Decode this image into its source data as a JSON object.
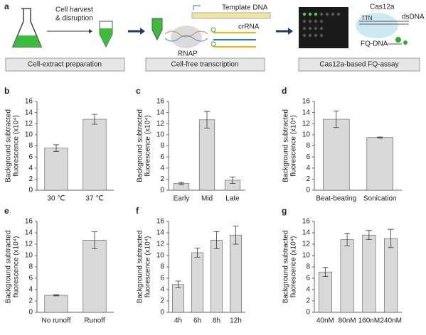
{
  "diagram": {
    "label": "a",
    "harvest": [
      "Cell harvest",
      "& disruption"
    ],
    "template": "Template DNA",
    "crrna": "crRNA",
    "rnap": "RNAP",
    "cas12a": "Cas12a",
    "dsdna": "dsDNA",
    "ttn": "TTN",
    "fqdna": "FQ-DNA",
    "steps": [
      "Cell-extract preparation",
      "Cell-free transcription",
      "Cas12a-based FQ-assay"
    ]
  },
  "chart_data": [
    {
      "type": "bar",
      "panel": "b",
      "y_label": [
        "Background subtracted",
        "fluorescence (x10⁴)"
      ],
      "categories": [
        "30 ℃",
        "37 ℃"
      ],
      "values": [
        7.6,
        12.8
      ],
      "errors": [
        0.6,
        0.9
      ],
      "color": "#d9d9d9",
      "ylim": [
        0,
        16
      ],
      "yticks": [
        0,
        2,
        4,
        6,
        8,
        10,
        12,
        14,
        16
      ]
    },
    {
      "type": "bar",
      "panel": "c",
      "y_label": [
        "Background subtracted",
        "fluorescence (x10⁴)"
      ],
      "categories": [
        "Early",
        "Mid",
        "Late"
      ],
      "values": [
        1.2,
        12.7,
        1.8
      ],
      "errors": [
        0.2,
        1.5,
        0.6
      ],
      "color": "#d9d9d9",
      "ylim": [
        0,
        16
      ],
      "yticks": [
        0,
        2,
        4,
        6,
        8,
        10,
        12,
        14,
        16
      ]
    },
    {
      "type": "bar",
      "panel": "d",
      "y_label": [
        "Background subtracted",
        "fluorescence (x10⁴)"
      ],
      "categories": [
        "Beat-beating",
        "Sonication"
      ],
      "values": [
        12.8,
        9.5
      ],
      "errors": [
        1.5,
        0.1
      ],
      "color": "#d9d9d9",
      "ylim": [
        0,
        16
      ],
      "yticks": [
        0,
        2,
        4,
        6,
        8,
        10,
        12,
        14,
        16
      ]
    },
    {
      "type": "bar",
      "panel": "e",
      "y_label": [
        "Background subtracted",
        "fluorescence (x10⁴)"
      ],
      "categories": [
        "No runoff",
        "Runoff"
      ],
      "values": [
        3.0,
        12.7
      ],
      "errors": [
        0.1,
        1.5
      ],
      "color": "#d9d9d9",
      "ylim": [
        0,
        16
      ],
      "yticks": [
        0,
        2,
        4,
        6,
        8,
        10,
        12,
        14,
        16
      ]
    },
    {
      "type": "bar",
      "panel": "f",
      "y_label": [
        "Background subtracted",
        "fluorescence (x10⁴)"
      ],
      "categories": [
        "4h",
        "6h",
        "8h",
        "12h"
      ],
      "values": [
        4.9,
        10.5,
        12.7,
        13.6
      ],
      "errors": [
        0.6,
        0.8,
        1.5,
        1.6
      ],
      "color": "#d9d9d9",
      "ylim": [
        0,
        16
      ],
      "yticks": [
        0,
        2,
        4,
        6,
        8,
        10,
        12,
        14,
        16
      ]
    },
    {
      "type": "bar",
      "panel": "g",
      "y_label": [
        "Background subtracted",
        "fluorescence (x10⁴)"
      ],
      "categories": [
        "40nM",
        "80nM",
        "160nM",
        "240nM"
      ],
      "values": [
        7.1,
        12.8,
        13.6,
        13.0
      ],
      "errors": [
        0.8,
        1.1,
        0.8,
        1.6
      ],
      "color": "#d9d9d9",
      "ylim": [
        0,
        16
      ],
      "yticks": [
        0,
        2,
        4,
        6,
        8,
        10,
        12,
        14,
        16
      ]
    }
  ]
}
